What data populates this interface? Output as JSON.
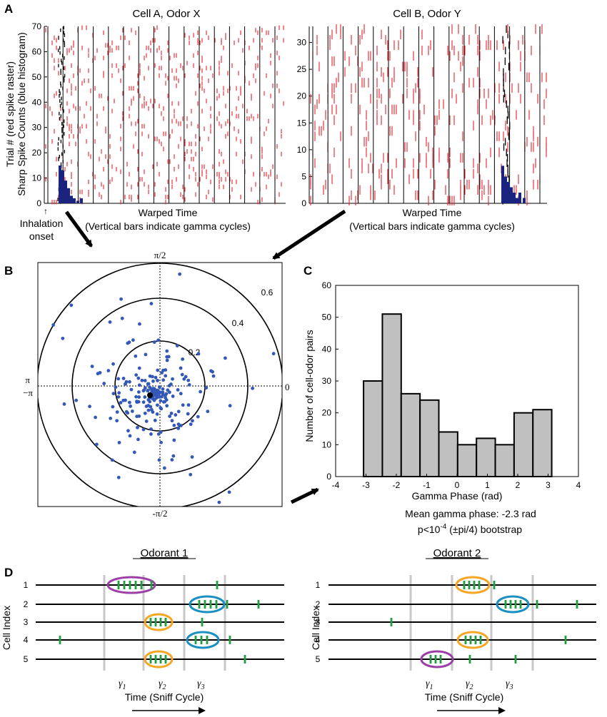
{
  "panel_labels": {
    "a": "A",
    "b": "B",
    "c": "C",
    "d": "D"
  },
  "panel_a": {
    "cell_a_title": "Cell A, Odor X",
    "cell_b_title": "Cell B, Odor Y",
    "y_label_line1": "Trial # (red spike raster)",
    "y_label_line2": "Sharp Spike Counts (blue histogram)",
    "x_label_line1": "Warped Time",
    "x_label_line2": "(Vertical bars indicate gamma cycles)",
    "inhalation_line1": "Inhalation",
    "inhalation_line2": "onset",
    "inhalation_arrow": "↑",
    "cell_a_yticks": [
      "0",
      "10",
      "20",
      "30",
      "40",
      "50",
      "60",
      "70"
    ],
    "cell_b_yticks": [
      "0",
      "5",
      "10",
      "15",
      "20",
      "25",
      "30"
    ],
    "colors": {
      "raster": "#e8202a",
      "histogram": "#1a237e",
      "gamma_bar": "#000000"
    }
  },
  "panel_b": {
    "label_top": "π/2",
    "label_bottom": "-π/2",
    "label_pi": "π",
    "label_minus_pi": "−π",
    "label_zero": "0",
    "ring_labels": [
      "0.2",
      "0.4",
      "0.6"
    ],
    "dot_color": "#3358b8"
  },
  "chart_data": {
    "type": "bar",
    "title": "",
    "xlabel": "Gamma Phase (rad)",
    "ylabel": "Number of cell-odor pairs",
    "x": [
      -2.77,
      -2.15,
      -1.53,
      -0.91,
      -0.29,
      0.33,
      0.95,
      1.57,
      2.19,
      2.81
    ],
    "values": [
      30,
      51,
      26,
      24,
      14,
      10,
      12,
      10,
      20,
      21
    ],
    "xlim": [
      -4,
      4
    ],
    "ylim": [
      0,
      60
    ],
    "xticks": [
      "-4",
      "-3",
      "-2",
      "-1",
      "0",
      "1",
      "2",
      "3",
      "4"
    ],
    "yticks": [
      "0",
      "10",
      "20",
      "30",
      "40",
      "50",
      "60"
    ],
    "bar_color": "#c0c0c0",
    "annotation_line1": "Mean gamma phase: -2.3 rad",
    "annotation_line2_pre": "p<10",
    "annotation_line2_sup": "-4",
    "annotation_line2_post": " (±pi/4) bootstrap"
  },
  "panel_d": {
    "odorant1_title": "Odorant 1",
    "odorant2_title": "Odorant 2",
    "y_label": "Cell Index",
    "x_label": "Time (Sniff Cycle)",
    "cell_indices": [
      "1",
      "2",
      "3",
      "4",
      "5"
    ],
    "gamma_symbol": "γ",
    "gamma_subscripts": [
      "1",
      "2",
      "3"
    ],
    "colors": {
      "purple": "#9b3fa6",
      "orange": "#f5a623",
      "blue": "#1a8fc2",
      "spike": "#1e9e3e",
      "gamma_line": "#c8c8c8"
    }
  }
}
